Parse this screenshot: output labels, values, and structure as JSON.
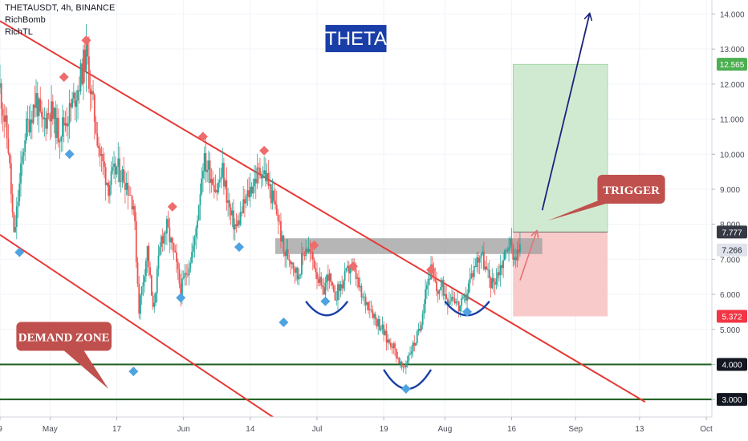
{
  "header": {
    "symbol_line": "THETAUSDT, 4h, BINANCE",
    "indicators": [
      "RichBomb",
      "RichTL"
    ]
  },
  "colors": {
    "up": "#26a69a",
    "down": "#ef5350",
    "trendline": "#e53935",
    "support": "#1b5e20",
    "resistance_box": "#9e9e9e",
    "target_zone": "#c8e6c9",
    "stop_zone": "#f8c4c4",
    "marker_high": "#ef6c6c",
    "marker_low": "#4fa3e0",
    "arc": "#1a3ea8",
    "projection_arrow": "#1a237e",
    "callout": "#c0504d",
    "theta_box": "#1a3ea8"
  },
  "chart_data": {
    "type": "candlestick",
    "title": "THETA",
    "x_tick_labels": [
      "9",
      "May",
      "17",
      "Jun",
      "14",
      "Jul",
      "19",
      "Aug",
      "16",
      "Sep",
      "13",
      "Oct"
    ],
    "y_tick_labels": [
      "3.000",
      "4.000",
      "5.000",
      "6.000",
      "7.000",
      "8.000",
      "9.000",
      "10.000",
      "11.000",
      "12.000",
      "13.000",
      "14.000"
    ],
    "ylim": [
      2.5,
      14.4
    ],
    "y_scale": "linear",
    "grid": true,
    "price_badges": [
      {
        "label": "12.565",
        "value": 12.565,
        "color": "#4caf50",
        "text_color": "#ffffff"
      },
      {
        "label": "7.777",
        "value": 7.777,
        "color": "#363a45",
        "text_color": "#ffffff"
      },
      {
        "label": "7.266",
        "value": 7.266,
        "color": "#e0e3eb",
        "text_color": "#131722"
      },
      {
        "label": "5.372",
        "value": 5.372,
        "color": "#f23645",
        "text_color": "#ffffff"
      },
      {
        "label": "4.000",
        "value": 4.0,
        "color": "#131722",
        "text_color": "#ffffff"
      },
      {
        "label": "3.000",
        "value": 3.0,
        "color": "#131722",
        "text_color": "#ffffff"
      }
    ],
    "horizontal_levels": [
      4.0,
      3.0
    ],
    "resistance_zone": [
      7.15,
      7.6
    ],
    "target_zone": [
      7.777,
      12.565
    ],
    "stop_zone": [
      5.372,
      7.777
    ],
    "price_path": [
      [
        0,
        11.9
      ],
      [
        3,
        10.2
      ],
      [
        5,
        7.6
      ],
      [
        9,
        10.6
      ],
      [
        13,
        11.6
      ],
      [
        15,
        10.8
      ],
      [
        18,
        11.3
      ],
      [
        21,
        10.6
      ],
      [
        25,
        11.2
      ],
      [
        28,
        11.9
      ],
      [
        31,
        12.9
      ],
      [
        33,
        11.6
      ],
      [
        36,
        10.0
      ],
      [
        39,
        9.1
      ],
      [
        42,
        9.6
      ],
      [
        45,
        9.3
      ],
      [
        48,
        8.6
      ],
      [
        50,
        5.6
      ],
      [
        53,
        7.3
      ],
      [
        55,
        5.5
      ],
      [
        58,
        7.6
      ],
      [
        60,
        7.9
      ],
      [
        63,
        7.0
      ],
      [
        65,
        6.1
      ],
      [
        68,
        6.9
      ],
      [
        70,
        7.5
      ],
      [
        73,
        9.8
      ],
      [
        75,
        9.6
      ],
      [
        78,
        9.0
      ],
      [
        80,
        9.5
      ],
      [
        83,
        8.2
      ],
      [
        85,
        7.9
      ],
      [
        88,
        8.6
      ],
      [
        91,
        9.2
      ],
      [
        94,
        9.6
      ],
      [
        96,
        9.3
      ],
      [
        98,
        8.7
      ],
      [
        100,
        8.2
      ],
      [
        102,
        7.2
      ],
      [
        105,
        7.0
      ],
      [
        107,
        6.5
      ],
      [
        110,
        7.4
      ],
      [
        113,
        6.9
      ],
      [
        116,
        6.0
      ],
      [
        118,
        6.6
      ],
      [
        120,
        5.9
      ],
      [
        123,
        6.3
      ],
      [
        126,
        6.8
      ],
      [
        128,
        6.5
      ],
      [
        130,
        5.9
      ],
      [
        133,
        5.7
      ],
      [
        135,
        5.3
      ],
      [
        137,
        5.1
      ],
      [
        139,
        4.7
      ],
      [
        141,
        4.6
      ],
      [
        143,
        4.2
      ],
      [
        145,
        3.8
      ],
      [
        147,
        4.3
      ],
      [
        149,
        4.6
      ],
      [
        151,
        5.0
      ],
      [
        153,
        6.2
      ],
      [
        155,
        6.7
      ],
      [
        157,
        6.1
      ],
      [
        159,
        6.2
      ],
      [
        161,
        5.9
      ],
      [
        163,
        6.0
      ],
      [
        165,
        5.6
      ],
      [
        167,
        5.8
      ],
      [
        169,
        6.4
      ],
      [
        171,
        6.9
      ],
      [
        173,
        7.2
      ],
      [
        175,
        6.6
      ],
      [
        177,
        6.3
      ],
      [
        179,
        6.6
      ],
      [
        181,
        7.0
      ],
      [
        183,
        7.5
      ],
      [
        185,
        7.1
      ],
      [
        187,
        7.25
      ]
    ],
    "trendlines": [
      {
        "from": [
          0,
          13.8
        ],
        "to": [
          232,
          2.93
        ]
      },
      {
        "from": [
          0,
          7.7
        ],
        "to": [
          100,
          2.4
        ]
      }
    ],
    "high_markers": [
      {
        "t": 23,
        "v": 12.2
      },
      {
        "t": 31,
        "v": 13.25
      },
      {
        "t": 62,
        "v": 8.5
      },
      {
        "t": 73,
        "v": 10.5
      },
      {
        "t": 95,
        "v": 10.1
      },
      {
        "t": 113,
        "v": 7.4
      },
      {
        "t": 127,
        "v": 6.8
      },
      {
        "t": 155,
        "v": 6.7
      }
    ],
    "low_markers": [
      {
        "t": 7,
        "v": 7.2
      },
      {
        "t": 25,
        "v": 10.0
      },
      {
        "t": 48,
        "v": 3.8
      },
      {
        "t": 65,
        "v": 5.9
      },
      {
        "t": 86,
        "v": 7.35
      },
      {
        "t": 102,
        "v": 5.2
      },
      {
        "t": 117,
        "v": 5.8
      },
      {
        "t": 146,
        "v": 3.3
      },
      {
        "t": 168,
        "v": 5.5
      }
    ],
    "arcs": [
      {
        "t_from": 110,
        "t_to": 125,
        "v_top": 5.8,
        "v_bottom": 5.4
      },
      {
        "t_from": 138,
        "t_to": 155,
        "v_top": 3.85,
        "v_bottom": 3.3
      },
      {
        "t_from": 160,
        "t_to": 176,
        "v_top": 5.8,
        "v_bottom": 5.4
      }
    ],
    "projection": {
      "from": [
        195,
        8.4
      ],
      "to": [
        212,
        14.0
      ]
    },
    "trigger_arrow": {
      "from": [
        187,
        6.4
      ],
      "to": [
        193,
        7.8
      ]
    },
    "annotations": [
      {
        "label": "TRIGGER",
        "t": 227,
        "v": 9.0,
        "pointer": [
          197,
          8.1
        ]
      },
      {
        "label": "DEMAND ZONE",
        "t": 23,
        "v": 4.8,
        "pointer": [
          39,
          3.3
        ]
      }
    ]
  }
}
